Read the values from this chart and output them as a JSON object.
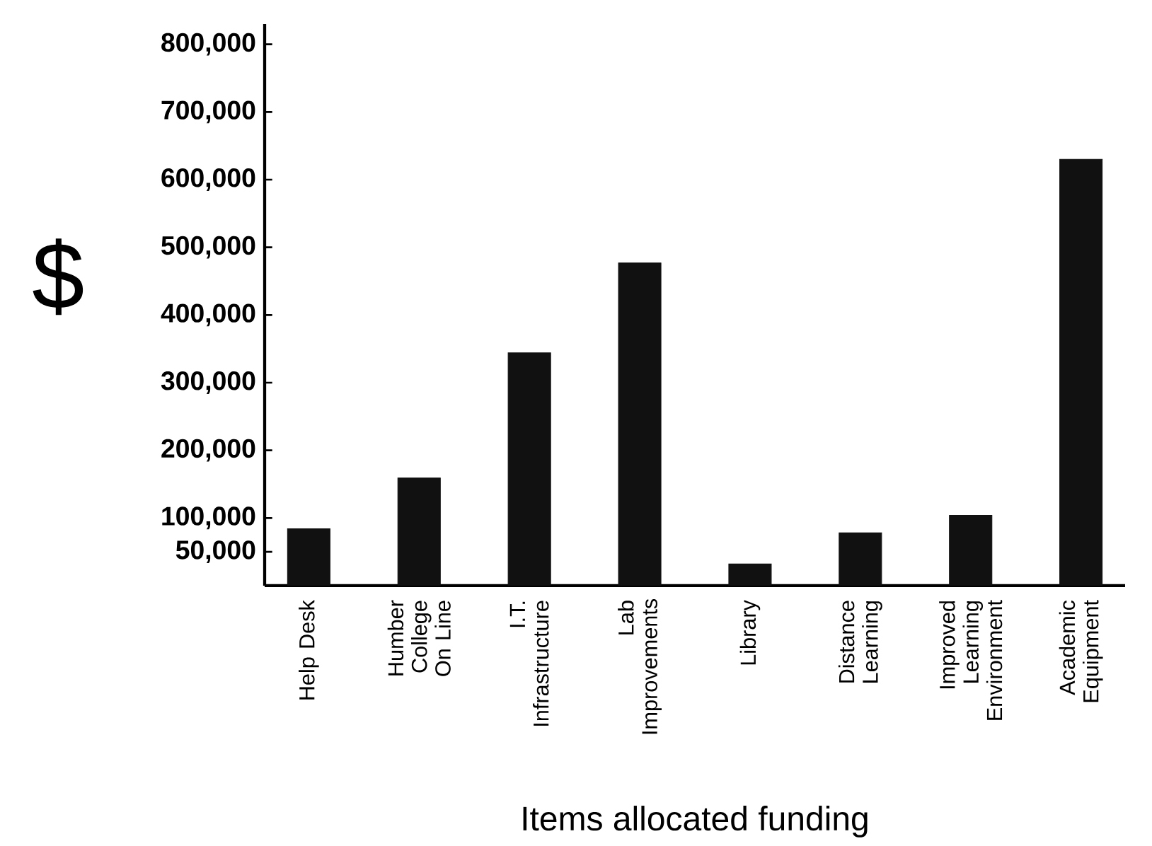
{
  "chart_data": {
    "type": "bar",
    "xlabel": "Items allocated funding",
    "ylabel": "$",
    "categories": [
      "Help Desk",
      "Humber College On Line",
      "I.T. Infrastructure",
      "Lab Improvements",
      "Library",
      "Distance Learning",
      "Improved Learning Environment",
      "Academic Equipment"
    ],
    "values": [
      84000,
      159000,
      344000,
      477000,
      32000,
      78000,
      104000,
      630000
    ],
    "color": "#111111",
    "ylim": [
      0,
      830000
    ],
    "yticks": [
      {
        "value": 50000,
        "label": "50,000"
      },
      {
        "value": 100000,
        "label": "100,000"
      },
      {
        "value": 200000,
        "label": "200,000"
      },
      {
        "value": 300000,
        "label": "300,000"
      },
      {
        "value": 400000,
        "label": "400,000"
      },
      {
        "value": 500000,
        "label": "500,000"
      },
      {
        "value": 600000,
        "label": "600,000"
      },
      {
        "value": 700000,
        "label": "700,000"
      },
      {
        "value": 800000,
        "label": "800,000"
      }
    ],
    "grid": false
  }
}
